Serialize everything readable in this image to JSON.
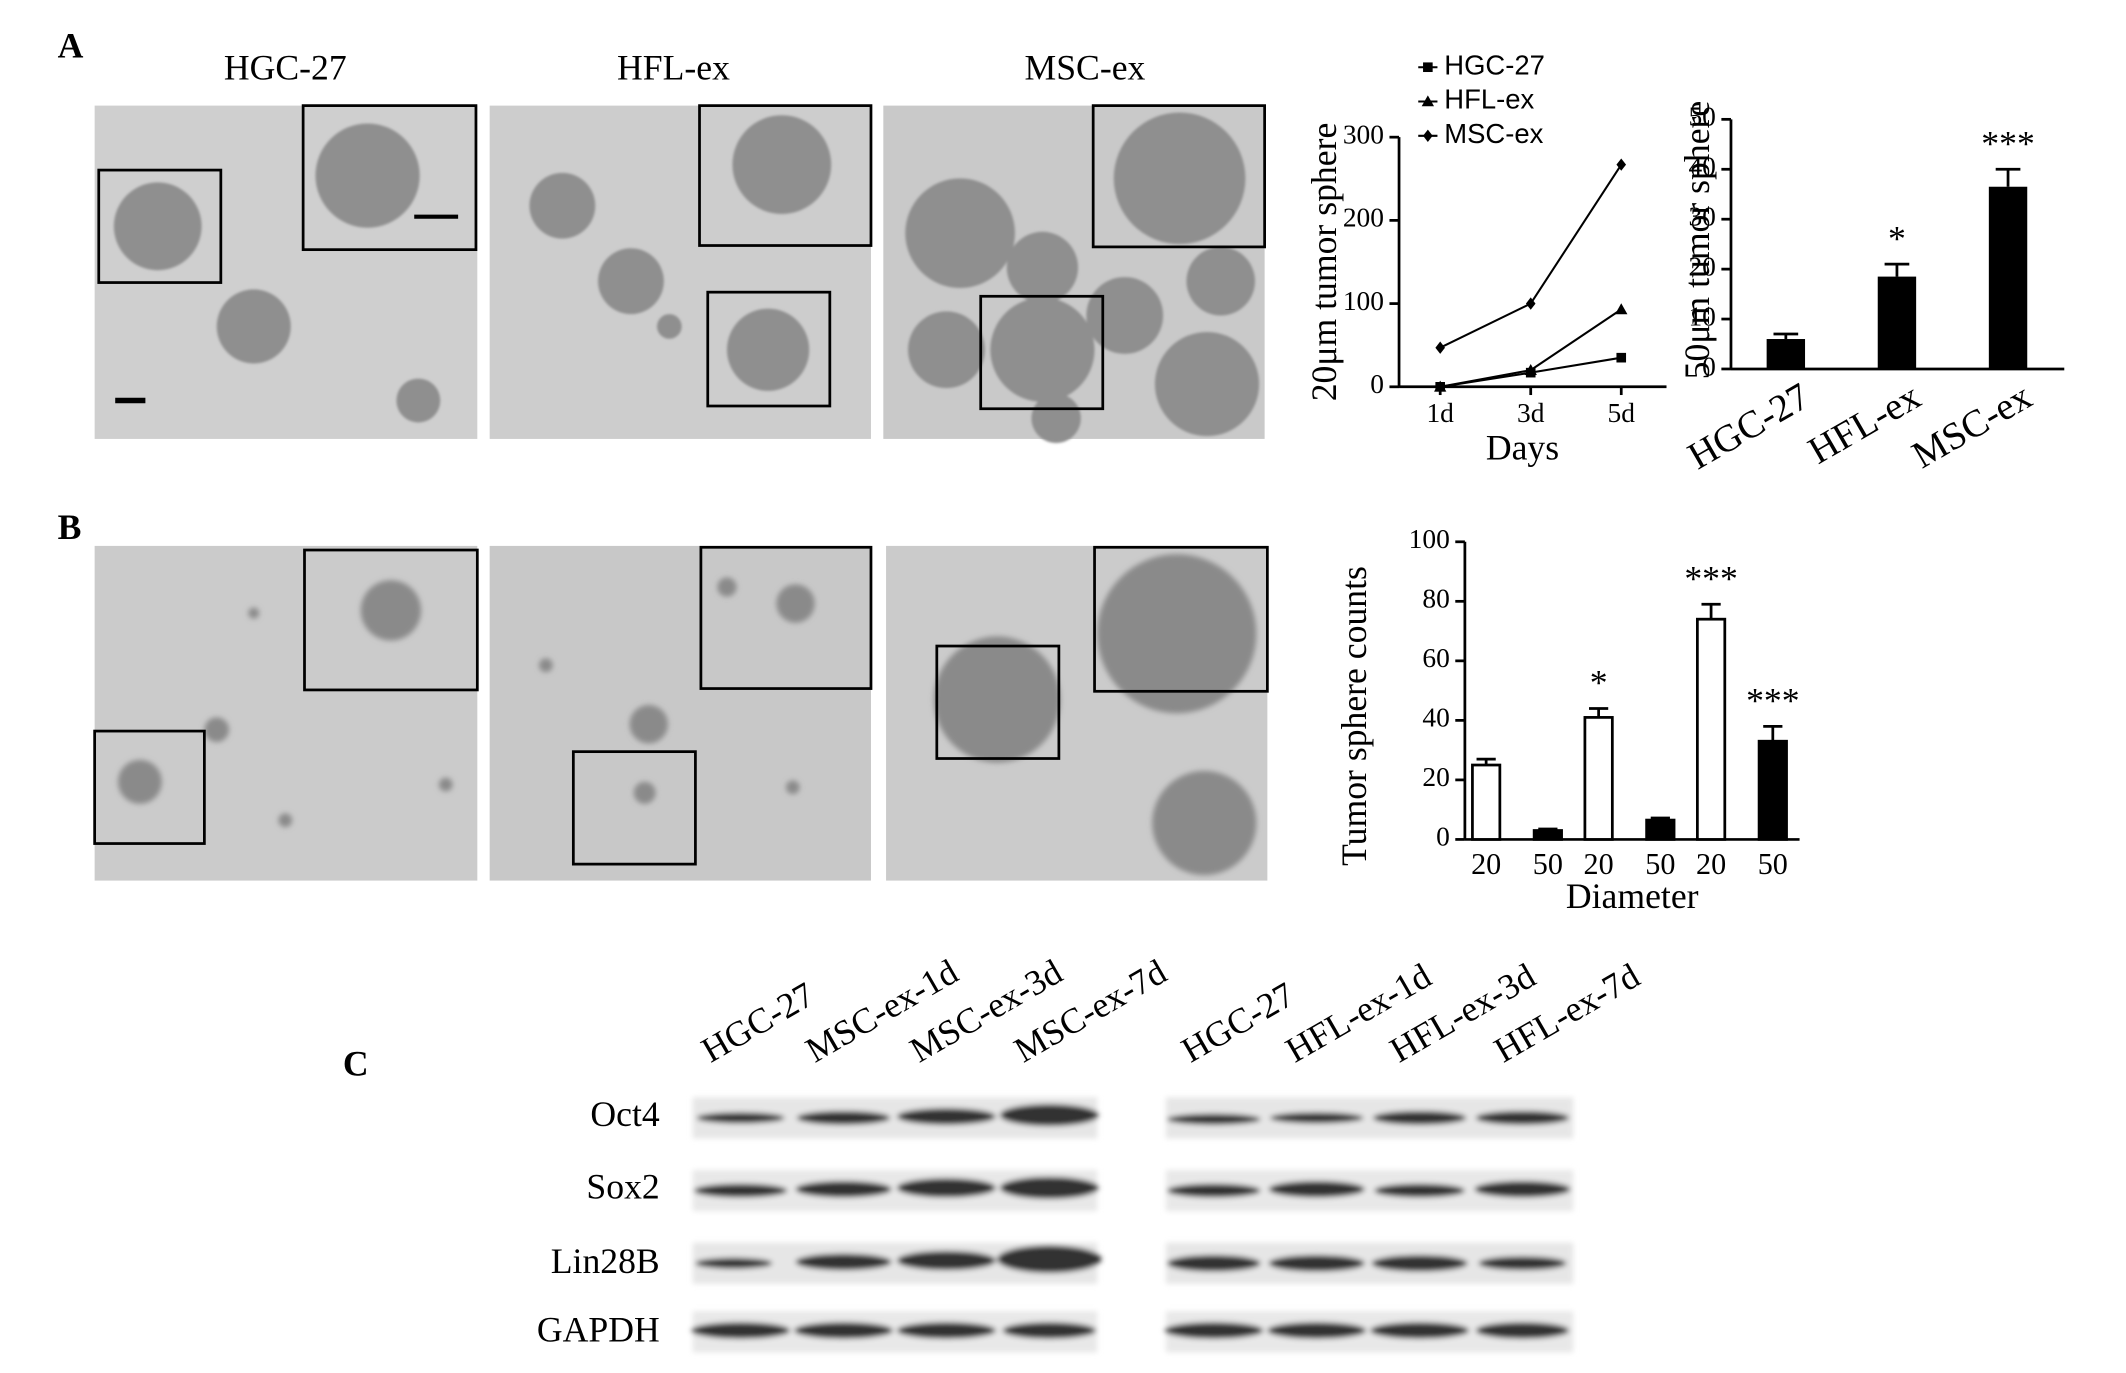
{
  "panel_labels": [
    "A",
    "B",
    "C"
  ],
  "image_labels": [
    "HGC-27",
    "HFL-ex",
    "MSC-ex"
  ],
  "chart_data": [
    {
      "type": "line",
      "categories": [
        "1d",
        "3d",
        "5d"
      ],
      "x_label": "Days",
      "y_label": "20μm tumor sphere",
      "ylim": [
        0,
        300
      ],
      "yticks": [
        0,
        100,
        200,
        300
      ],
      "legend": "top-left",
      "series": [
        {
          "name": "HGC-27",
          "color": "#000000",
          "marker": "square",
          "values": [
            0,
            17,
            35
          ]
        },
        {
          "name": "HFL-ex",
          "color": "#000000",
          "marker": "triangle",
          "values": [
            0,
            20,
            93
          ]
        },
        {
          "name": "MSC-ex",
          "color": "#000000",
          "marker": "diamond",
          "values": [
            47,
            100,
            267
          ]
        }
      ]
    },
    {
      "type": "bar",
      "categories": [
        "HGC-27",
        "HFL-ex",
        "MSC-ex"
      ],
      "y_label": "50μm tumor sphere",
      "ylim": [
        0,
        50
      ],
      "yticks": [
        0,
        10,
        20,
        30,
        40,
        50
      ],
      "color": "#000000",
      "values": [
        6,
        18.5,
        36.5
      ],
      "errors": [
        1,
        2.5,
        3.5
      ],
      "significance": [
        null,
        "*",
        "***"
      ]
    },
    {
      "type": "grouped_bar",
      "categories": [
        null,
        null,
        null
      ],
      "x_label": "Diameter",
      "y_label": "Tumor sphere counts",
      "ylim": [
        0,
        100
      ],
      "yticks": [
        0,
        20,
        40,
        60,
        80,
        100
      ],
      "series": [
        {
          "name": "20",
          "color": "#ffffff",
          "values": [
            25,
            41,
            74
          ],
          "errors": [
            2,
            3,
            5
          ],
          "significance": [
            null,
            "*",
            "***"
          ]
        },
        {
          "name": "50",
          "color": "#000000",
          "values": [
            3,
            6.5,
            33
          ],
          "errors": [
            0.5,
            0.7,
            5
          ],
          "significance": [
            null,
            null,
            "***"
          ]
        }
      ]
    }
  ],
  "western_blot": {
    "lanes_left": [
      "HGC-27",
      "MSC-ex-1d",
      "MSC-ex-3d",
      "MSC-ex-7d"
    ],
    "lanes_right": [
      "HGC-27",
      "HFL-ex-1d",
      "HFL-ex-3d",
      "HFL-ex-7d"
    ],
    "rows": [
      "Oct4",
      "Sox2",
      "Lin28B",
      "GAPDH"
    ]
  }
}
